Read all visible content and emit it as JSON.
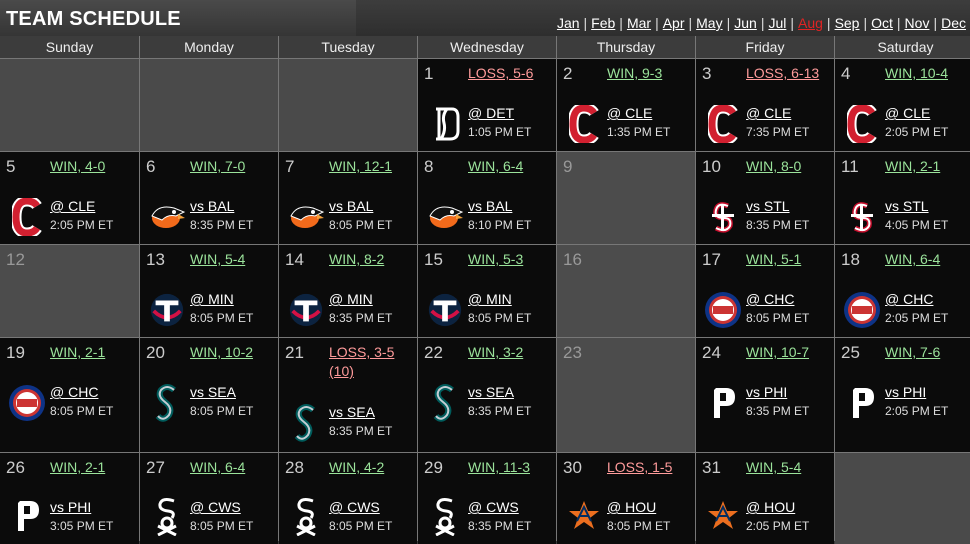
{
  "header": {
    "title": "TEAM SCHEDULE",
    "months": [
      "Jan",
      "Feb",
      "Mar",
      "Apr",
      "May",
      "Jun",
      "Jul",
      "Aug",
      "Sep",
      "Oct",
      "Nov",
      "Dec"
    ],
    "active_month": "Aug",
    "active_color": "#e02424"
  },
  "weekdays": [
    "Sunday",
    "Monday",
    "Tuesday",
    "Wednesday",
    "Thursday",
    "Friday",
    "Saturday"
  ],
  "colors": {
    "win": "#9be39b",
    "loss": "#ff9b9b",
    "game_bg": "#0b0b0b",
    "off_bg": "#4c4c4c"
  },
  "days": [
    {
      "day": "1",
      "result": "LOSS, 5-6",
      "outcome": "loss",
      "opp": "@ DET",
      "time": "1:05 PM ET",
      "logo": "tigers-logo"
    },
    {
      "day": "2",
      "result": "WIN, 9-3",
      "outcome": "win",
      "opp": "@ CLE",
      "time": "1:35 PM ET",
      "logo": "guardians-logo"
    },
    {
      "day": "3",
      "result": "LOSS, 6-13",
      "outcome": "loss",
      "opp": "@ CLE",
      "time": "7:35 PM ET",
      "logo": "guardians-logo"
    },
    {
      "day": "4",
      "result": "WIN, 10-4",
      "outcome": "win",
      "opp": "@ CLE",
      "time": "2:05 PM ET",
      "logo": "guardians-logo"
    },
    {
      "day": "5",
      "result": "WIN, 4-0",
      "outcome": "win",
      "opp": "@ CLE",
      "time": "2:05 PM ET",
      "logo": "guardians-logo"
    },
    {
      "day": "6",
      "result": "WIN, 7-0",
      "outcome": "win",
      "opp": "vs BAL",
      "time": "8:35 PM ET",
      "logo": "orioles-logo"
    },
    {
      "day": "7",
      "result": "WIN, 12-1",
      "outcome": "win",
      "opp": "vs BAL",
      "time": "8:05 PM ET",
      "logo": "orioles-logo"
    },
    {
      "day": "8",
      "result": "WIN, 6-4",
      "outcome": "win",
      "opp": "vs BAL",
      "time": "8:10 PM ET",
      "logo": "orioles-logo"
    },
    {
      "day": "9",
      "off": true
    },
    {
      "day": "10",
      "result": "WIN, 8-0",
      "outcome": "win",
      "opp": "vs STL",
      "time": "8:35 PM ET",
      "logo": "cardinals-logo"
    },
    {
      "day": "11",
      "result": "WIN, 2-1",
      "outcome": "win",
      "opp": "vs STL",
      "time": "4:05 PM ET",
      "logo": "cardinals-logo"
    },
    {
      "day": "12",
      "off": true
    },
    {
      "day": "13",
      "result": "WIN, 5-4",
      "outcome": "win",
      "opp": "@ MIN",
      "time": "8:05 PM ET",
      "logo": "twins-logo"
    },
    {
      "day": "14",
      "result": "WIN, 8-2",
      "outcome": "win",
      "opp": "@ MIN",
      "time": "8:35 PM ET",
      "logo": "twins-logo"
    },
    {
      "day": "15",
      "result": "WIN, 5-3",
      "outcome": "win",
      "opp": "@ MIN",
      "time": "8:05 PM ET",
      "logo": "twins-logo"
    },
    {
      "day": "16",
      "off": true
    },
    {
      "day": "17",
      "result": "WIN, 5-1",
      "outcome": "win",
      "opp": "@ CHC",
      "time": "8:05 PM ET",
      "logo": "cubs-logo"
    },
    {
      "day": "18",
      "result": "WIN, 6-4",
      "outcome": "win",
      "opp": "@ CHC",
      "time": "2:05 PM ET",
      "logo": "cubs-logo"
    },
    {
      "day": "19",
      "result": "WIN, 2-1",
      "outcome": "win",
      "opp": "@ CHC",
      "time": "8:05 PM ET",
      "logo": "cubs-logo"
    },
    {
      "day": "20",
      "result": "WIN, 10-2",
      "outcome": "win",
      "opp": "vs SEA",
      "time": "8:05 PM ET",
      "logo": "mariners-logo"
    },
    {
      "day": "21",
      "result": "LOSS, 3-5",
      "result_sub": "(10)",
      "outcome": "loss",
      "opp": "vs SEA",
      "time": "8:35 PM ET",
      "logo": "mariners-logo"
    },
    {
      "day": "22",
      "result": "WIN, 3-2",
      "outcome": "win",
      "opp": "vs SEA",
      "time": "8:35 PM ET",
      "logo": "mariners-logo"
    },
    {
      "day": "23",
      "off": true
    },
    {
      "day": "24",
      "result": "WIN, 10-7",
      "outcome": "win",
      "opp": "vs PHI",
      "time": "8:35 PM ET",
      "logo": "phillies-logo"
    },
    {
      "day": "25",
      "result": "WIN, 7-6",
      "outcome": "win",
      "opp": "vs PHI",
      "time": "2:05 PM ET",
      "logo": "phillies-logo"
    },
    {
      "day": "26",
      "result": "WIN, 2-1",
      "outcome": "win",
      "opp": "vs PHI",
      "time": "3:05 PM ET",
      "logo": "phillies-logo"
    },
    {
      "day": "27",
      "result": "WIN, 6-4",
      "outcome": "win",
      "opp": "@ CWS",
      "time": "8:05 PM ET",
      "logo": "whitesox-logo"
    },
    {
      "day": "28",
      "result": "WIN, 4-2",
      "outcome": "win",
      "opp": "@ CWS",
      "time": "8:05 PM ET",
      "logo": "whitesox-logo"
    },
    {
      "day": "29",
      "result": "WIN, 11-3",
      "outcome": "win",
      "opp": "@ CWS",
      "time": "8:35 PM ET",
      "logo": "whitesox-logo"
    },
    {
      "day": "30",
      "result": "LOSS, 1-5",
      "outcome": "loss",
      "opp": "@ HOU",
      "time": "8:05 PM ET",
      "logo": "astros-logo"
    },
    {
      "day": "31",
      "result": "WIN, 5-4",
      "outcome": "win",
      "opp": "@ HOU",
      "time": "2:05 PM ET",
      "logo": "astros-logo"
    }
  ]
}
